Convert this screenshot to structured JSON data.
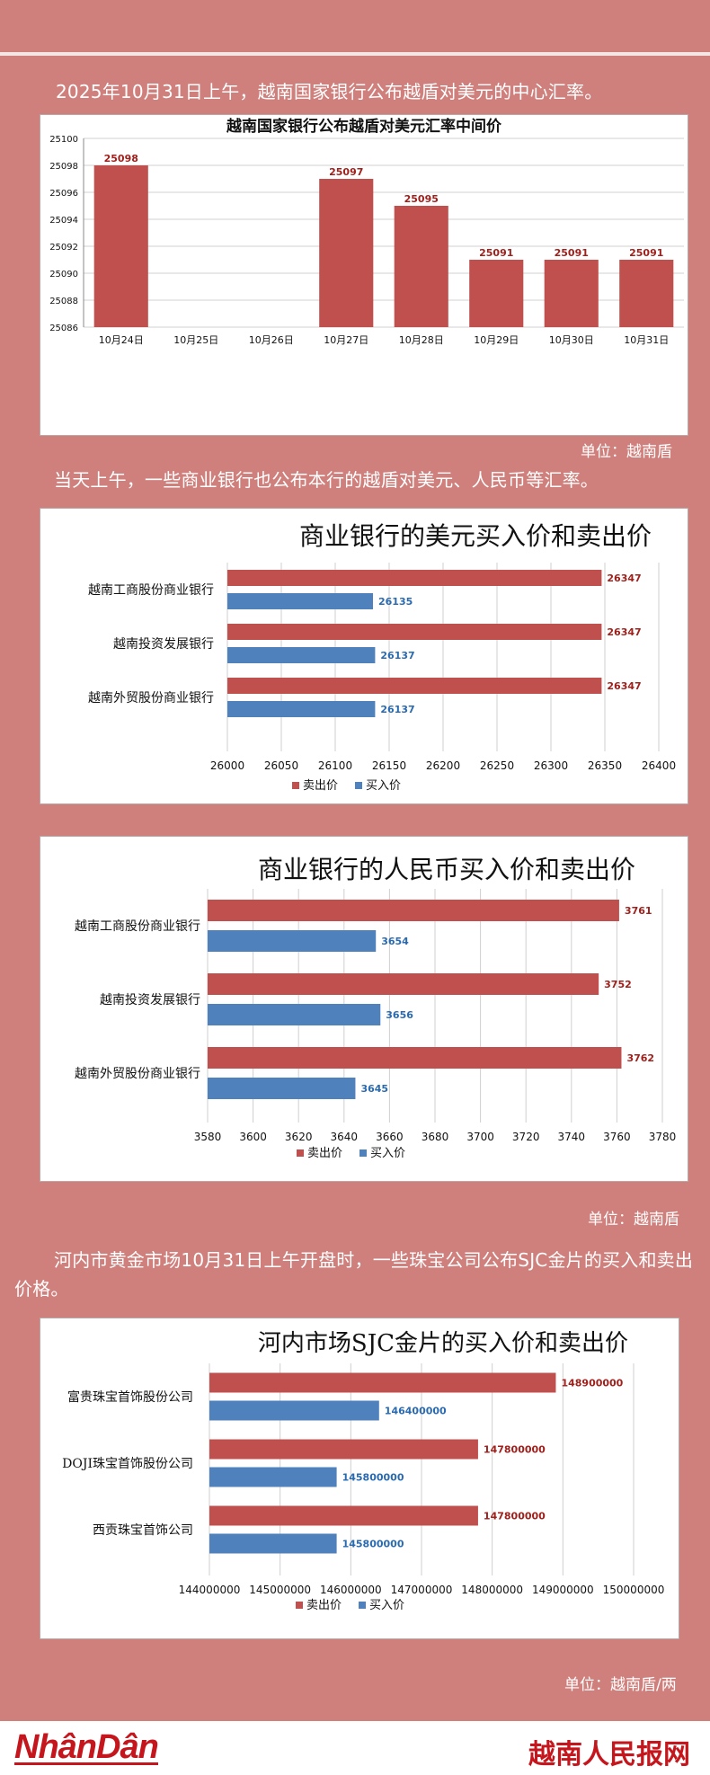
{
  "captions": {
    "c1": "2025年10月31日上午，越南国家银行公布越盾对美元的中心汇率。",
    "unit1": "单位：越南盾",
    "c2": "当天上午，一些商业银行也公布本行的越盾对美元、人民币等汇率。",
    "unit2": "单位：越南盾",
    "c3": "河内市黄金市场10月31日上午开盘时，一些珠宝公司公布SJC金片的买入和卖出价格。",
    "unit3": "单位：越南盾/两"
  },
  "footer": {
    "left_logo": "NhânDân",
    "right_logo": "越南人民报网"
  },
  "colors": {
    "sell": "#c0504d",
    "buy": "#4f81bd",
    "background": "#cf807c"
  },
  "chart_data": [
    {
      "type": "bar",
      "title": "越南国家银行公布越盾对美元汇率中间价",
      "categories": [
        "10月24日",
        "10月25日",
        "10月26日",
        "10月27日",
        "10月28日",
        "10月29日",
        "10月30日",
        "10月31日"
      ],
      "values": [
        25098,
        null,
        null,
        25097,
        25095,
        25091,
        25091,
        25091
      ],
      "ylim": [
        25086,
        25100
      ],
      "yticks": [
        25086,
        25088,
        25090,
        25092,
        25094,
        25096,
        25098,
        25100
      ],
      "grid": true
    },
    {
      "type": "bar",
      "orientation": "horizontal",
      "title": "商业银行的美元买入价和卖出价",
      "categories": [
        "越南工商股份商业银行",
        "越南投资发展银行",
        "越南外贸股份商业银行"
      ],
      "series": [
        {
          "name": "卖出价",
          "values": [
            26347,
            26347,
            26347
          ]
        },
        {
          "name": "买入价",
          "values": [
            26135,
            26137,
            26137
          ]
        }
      ],
      "xlim": [
        26000,
        26400
      ],
      "xticks": [
        26000,
        26050,
        26100,
        26150,
        26200,
        26250,
        26300,
        26350,
        26400
      ],
      "legend": "bottom"
    },
    {
      "type": "bar",
      "orientation": "horizontal",
      "title": "商业银行的人民币买入价和卖出价",
      "categories": [
        "越南工商股份商业银行",
        "越南投资发展银行",
        "越南外贸股份商业银行"
      ],
      "series": [
        {
          "name": "卖出价",
          "values": [
            3761,
            3752,
            3762
          ]
        },
        {
          "name": "买入价",
          "values": [
            3654,
            3656,
            3645
          ]
        }
      ],
      "xlim": [
        3580,
        3780
      ],
      "xticks": [
        3580,
        3600,
        3620,
        3640,
        3660,
        3680,
        3700,
        3720,
        3740,
        3760,
        3780
      ],
      "legend": "bottom"
    },
    {
      "type": "bar",
      "orientation": "horizontal",
      "title": "河内市场SJC金片的买入价和卖出价",
      "categories": [
        "富贵珠宝首饰股份公司",
        "DOJI珠宝首饰股份公司",
        "西贡珠宝首饰公司"
      ],
      "series": [
        {
          "name": "卖出价",
          "values": [
            148900000,
            147800000,
            147800000
          ]
        },
        {
          "name": "买入价",
          "values": [
            146400000,
            145800000,
            145800000
          ]
        }
      ],
      "xlim": [
        144000000,
        150000000
      ],
      "xticks": [
        144000000,
        145000000,
        146000000,
        147000000,
        148000000,
        149000000,
        150000000
      ],
      "legend": "bottom"
    }
  ]
}
